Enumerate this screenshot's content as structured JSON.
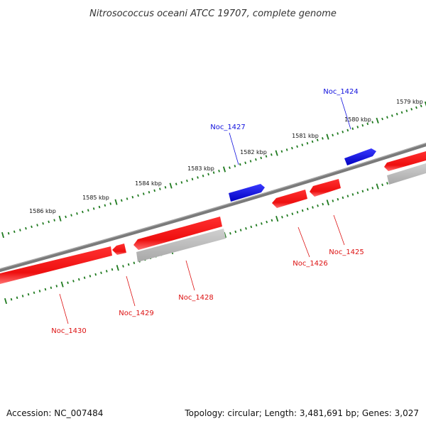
{
  "title": "Nitrosococcus oceani ATCC 19707, complete genome",
  "footer": {
    "accession": "Accession: NC_007484",
    "summary": "Topology: circular; Length: 3,481,691 bp; Genes: 3,027"
  },
  "colors": {
    "backbone": "#7a7a7a",
    "forward_gene": "#1010dd",
    "reverse_gene": "#ee1111",
    "rna": "#b8b8b8",
    "tick": "#1f7a1f"
  },
  "ticks": [
    {
      "label": "1579 kbp"
    },
    {
      "label": "1580 kbp"
    },
    {
      "label": "1581 kbp"
    },
    {
      "label": "1582 kbp"
    },
    {
      "label": "1583 kbp"
    },
    {
      "label": "1584 kbp"
    },
    {
      "label": "1585 kbp"
    },
    {
      "label": "1586 kbp"
    }
  ],
  "genes": [
    {
      "name": "Noc_1424",
      "strand": "forward"
    },
    {
      "name": "Noc_1425",
      "strand": "reverse"
    },
    {
      "name": "Noc_1426",
      "strand": "reverse"
    },
    {
      "name": "Noc_1427",
      "strand": "forward"
    },
    {
      "name": "Noc_1428",
      "strand": "reverse"
    },
    {
      "name": "Noc_1429",
      "strand": "reverse"
    },
    {
      "name": "Noc_1430",
      "strand": "reverse"
    }
  ]
}
